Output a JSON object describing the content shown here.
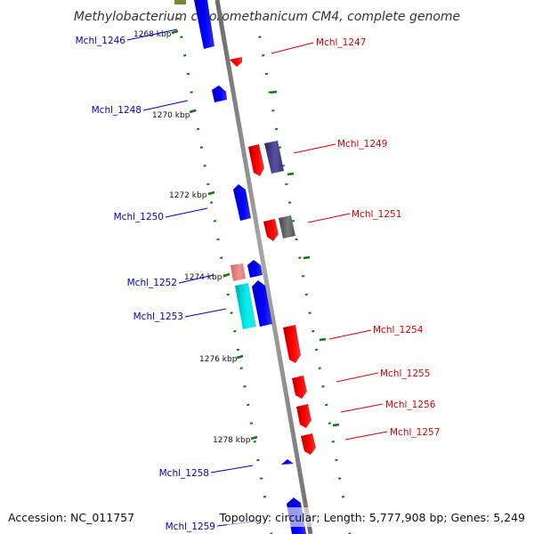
{
  "title": "Methylobacterium chloromethanicum CM4, complete genome",
  "footer": {
    "accession": "Accession: NC_011757",
    "topology": "Topology: circular; Length: 5,777,908 bp; Genes: 5,249"
  },
  "tick_labels": [
    "1268 kbp",
    "1270 kbp",
    "1272 kbp",
    "1274 kbp",
    "1276 kbp",
    "1278 kbp"
  ],
  "genes": [
    {
      "name": "Mchl_1246",
      "strand": "minus"
    },
    {
      "name": "Mchl_1247",
      "strand": "plus"
    },
    {
      "name": "Mchl_1248",
      "strand": "minus"
    },
    {
      "name": "Mchl_1249",
      "strand": "plus"
    },
    {
      "name": "Mchl_1250",
      "strand": "minus"
    },
    {
      "name": "Mchl_1251",
      "strand": "plus"
    },
    {
      "name": "Mchl_1252",
      "strand": "minus"
    },
    {
      "name": "Mchl_1253",
      "strand": "minus"
    },
    {
      "name": "Mchl_1254",
      "strand": "plus"
    },
    {
      "name": "Mchl_1255",
      "strand": "plus"
    },
    {
      "name": "Mchl_1256",
      "strand": "plus"
    },
    {
      "name": "Mchl_1257",
      "strand": "plus"
    },
    {
      "name": "Mchl_1258",
      "strand": "minus"
    },
    {
      "name": "Mchl_1259",
      "strand": "minus"
    }
  ],
  "colors": {
    "minus_label": "#0000cc",
    "plus_label": "#dd0000",
    "cds_blue": "#0000ee",
    "cds_red": "#ee0000",
    "cds_purple": "#4a3f8c",
    "cds_gray": "#666666",
    "cds_pink": "#ee8080",
    "cds_cyan": "#00dddd",
    "backbone": "#888888",
    "ticks": "#117711"
  }
}
